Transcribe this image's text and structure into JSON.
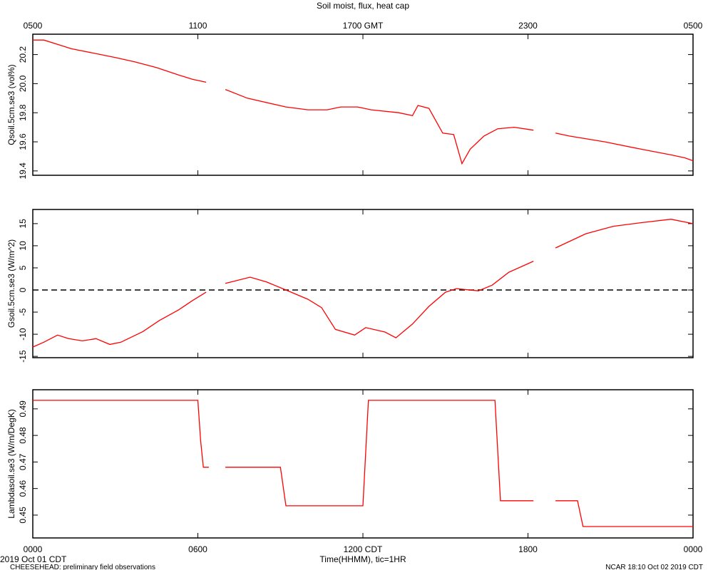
{
  "title": "Soil moist, flux, heat cap",
  "x_label": "Time(HHMM), tic=1HR",
  "date_label": "2019 Oct 01 CDT",
  "footer_left": "CHEESEHEAD: preliminary field observations",
  "footer_right": "NCAR 18:10 Oct 02 2019 CDT",
  "chart_data": [
    {
      "type": "line",
      "y_label": "Qsoil.5cm.se3 (vol%)",
      "color": "#ff0000",
      "xlim": [
        0,
        24
      ],
      "ylim": [
        19.37,
        20.34
      ],
      "yticks": [
        19.4,
        19.6,
        19.8,
        {
          "value": 20.0,
          "label": "20.0"
        },
        20.2
      ],
      "x2ticks": [
        {
          "value": 0,
          "label": "0500"
        },
        {
          "value": 6,
          "label": "1100"
        },
        {
          "value": 12,
          "label": "1700 GMT"
        },
        {
          "value": 18,
          "label": "2300"
        },
        {
          "value": 24,
          "label": "0500"
        }
      ],
      "x": [
        0,
        0.4,
        0.9,
        1.4,
        2.2,
        3.0,
        3.7,
        4.5,
        5.3,
        5.8,
        6.3,
        6.6,
        7.0,
        7.8,
        9.2,
        10.0,
        10.7,
        11.2,
        11.8,
        12.3,
        13.3,
        13.8,
        14.0,
        14.4,
        14.9,
        15.3,
        15.6,
        15.9,
        16.4,
        16.9,
        17.5,
        18.2,
        18.6,
        19.0,
        19.5,
        20.8,
        22.1,
        23.2,
        23.7,
        24
      ],
      "values": [
        20.3,
        20.3,
        20.27,
        20.24,
        20.21,
        20.18,
        20.15,
        20.11,
        20.06,
        20.03,
        20.01,
        null,
        19.96,
        19.9,
        19.84,
        19.82,
        19.82,
        19.84,
        19.84,
        19.82,
        19.8,
        19.78,
        19.85,
        19.83,
        19.66,
        19.65,
        19.45,
        19.55,
        19.64,
        19.69,
        19.7,
        19.68,
        null,
        19.66,
        19.64,
        19.6,
        19.55,
        19.51,
        19.49,
        19.47
      ]
    },
    {
      "type": "line",
      "y_label": "Gsoil.5cm.se3 (W/m^2)",
      "color": "#ff0000",
      "xlim": [
        0,
        24
      ],
      "ylim": [
        -15.3,
        18.2
      ],
      "yticks": [
        -15,
        -10,
        -5,
        0,
        5,
        10,
        15
      ],
      "reference_line": 0,
      "x": [
        0,
        0.4,
        0.9,
        1.3,
        1.8,
        2.3,
        2.8,
        3.2,
        4.0,
        4.6,
        5.3,
        5.8,
        6.3,
        6.6,
        7.0,
        7.9,
        8.5,
        9.2,
        10.0,
        10.5,
        11.0,
        11.7,
        12.1,
        12.8,
        13.2,
        13.8,
        14.4,
        15.0,
        15.4,
        16.2,
        16.7,
        17.3,
        18.2,
        18.6,
        19.0,
        20.1,
        21.1,
        22.1,
        23.2,
        24
      ],
      "values": [
        -12.9,
        -11.8,
        -10.2,
        -11.0,
        -11.5,
        -11.0,
        -12.3,
        -11.8,
        -9.4,
        -6.9,
        -4.5,
        -2.4,
        -0.5,
        null,
        1.5,
        2.9,
        1.8,
        0,
        -2.1,
        -4.0,
        -8.9,
        -10.2,
        -8.5,
        -9.5,
        -10.8,
        -7.7,
        -3.7,
        -0.5,
        0.3,
        -0.2,
        1.1,
        4.0,
        6.5,
        null,
        9.5,
        12.7,
        14.4,
        15.2,
        16.0,
        15.0
      ]
    },
    {
      "type": "line",
      "y_label": "Lambdasoil.se3 (W/m/DegK)",
      "color": "#ff0000",
      "xlim": [
        0,
        24
      ],
      "ylim": [
        0.4414,
        0.4972
      ],
      "yticks": [
        0.45,
        0.46,
        0.47,
        0.48,
        0.49
      ],
      "xticks": [
        {
          "value": 0,
          "label": "0000"
        },
        {
          "value": 6,
          "label": "0600"
        },
        {
          "value": 12,
          "label": "1200 CDT"
        },
        {
          "value": 18,
          "label": "1800"
        },
        {
          "value": 24,
          "label": "0000"
        }
      ],
      "x": [
        0,
        6.0,
        6.1,
        6.2,
        6.4,
        6.7,
        7.0,
        9.0,
        9.2,
        12.0,
        12.2,
        16.8,
        17.0,
        18.2,
        18.6,
        19.0,
        19.8,
        20.0,
        24
      ],
      "values": [
        0.4932,
        0.4932,
        0.478,
        0.468,
        0.468,
        null,
        0.468,
        0.468,
        0.4535,
        0.4535,
        0.4932,
        0.4932,
        0.4554,
        0.4554,
        null,
        0.4554,
        0.4554,
        0.4457,
        0.4457
      ]
    }
  ]
}
